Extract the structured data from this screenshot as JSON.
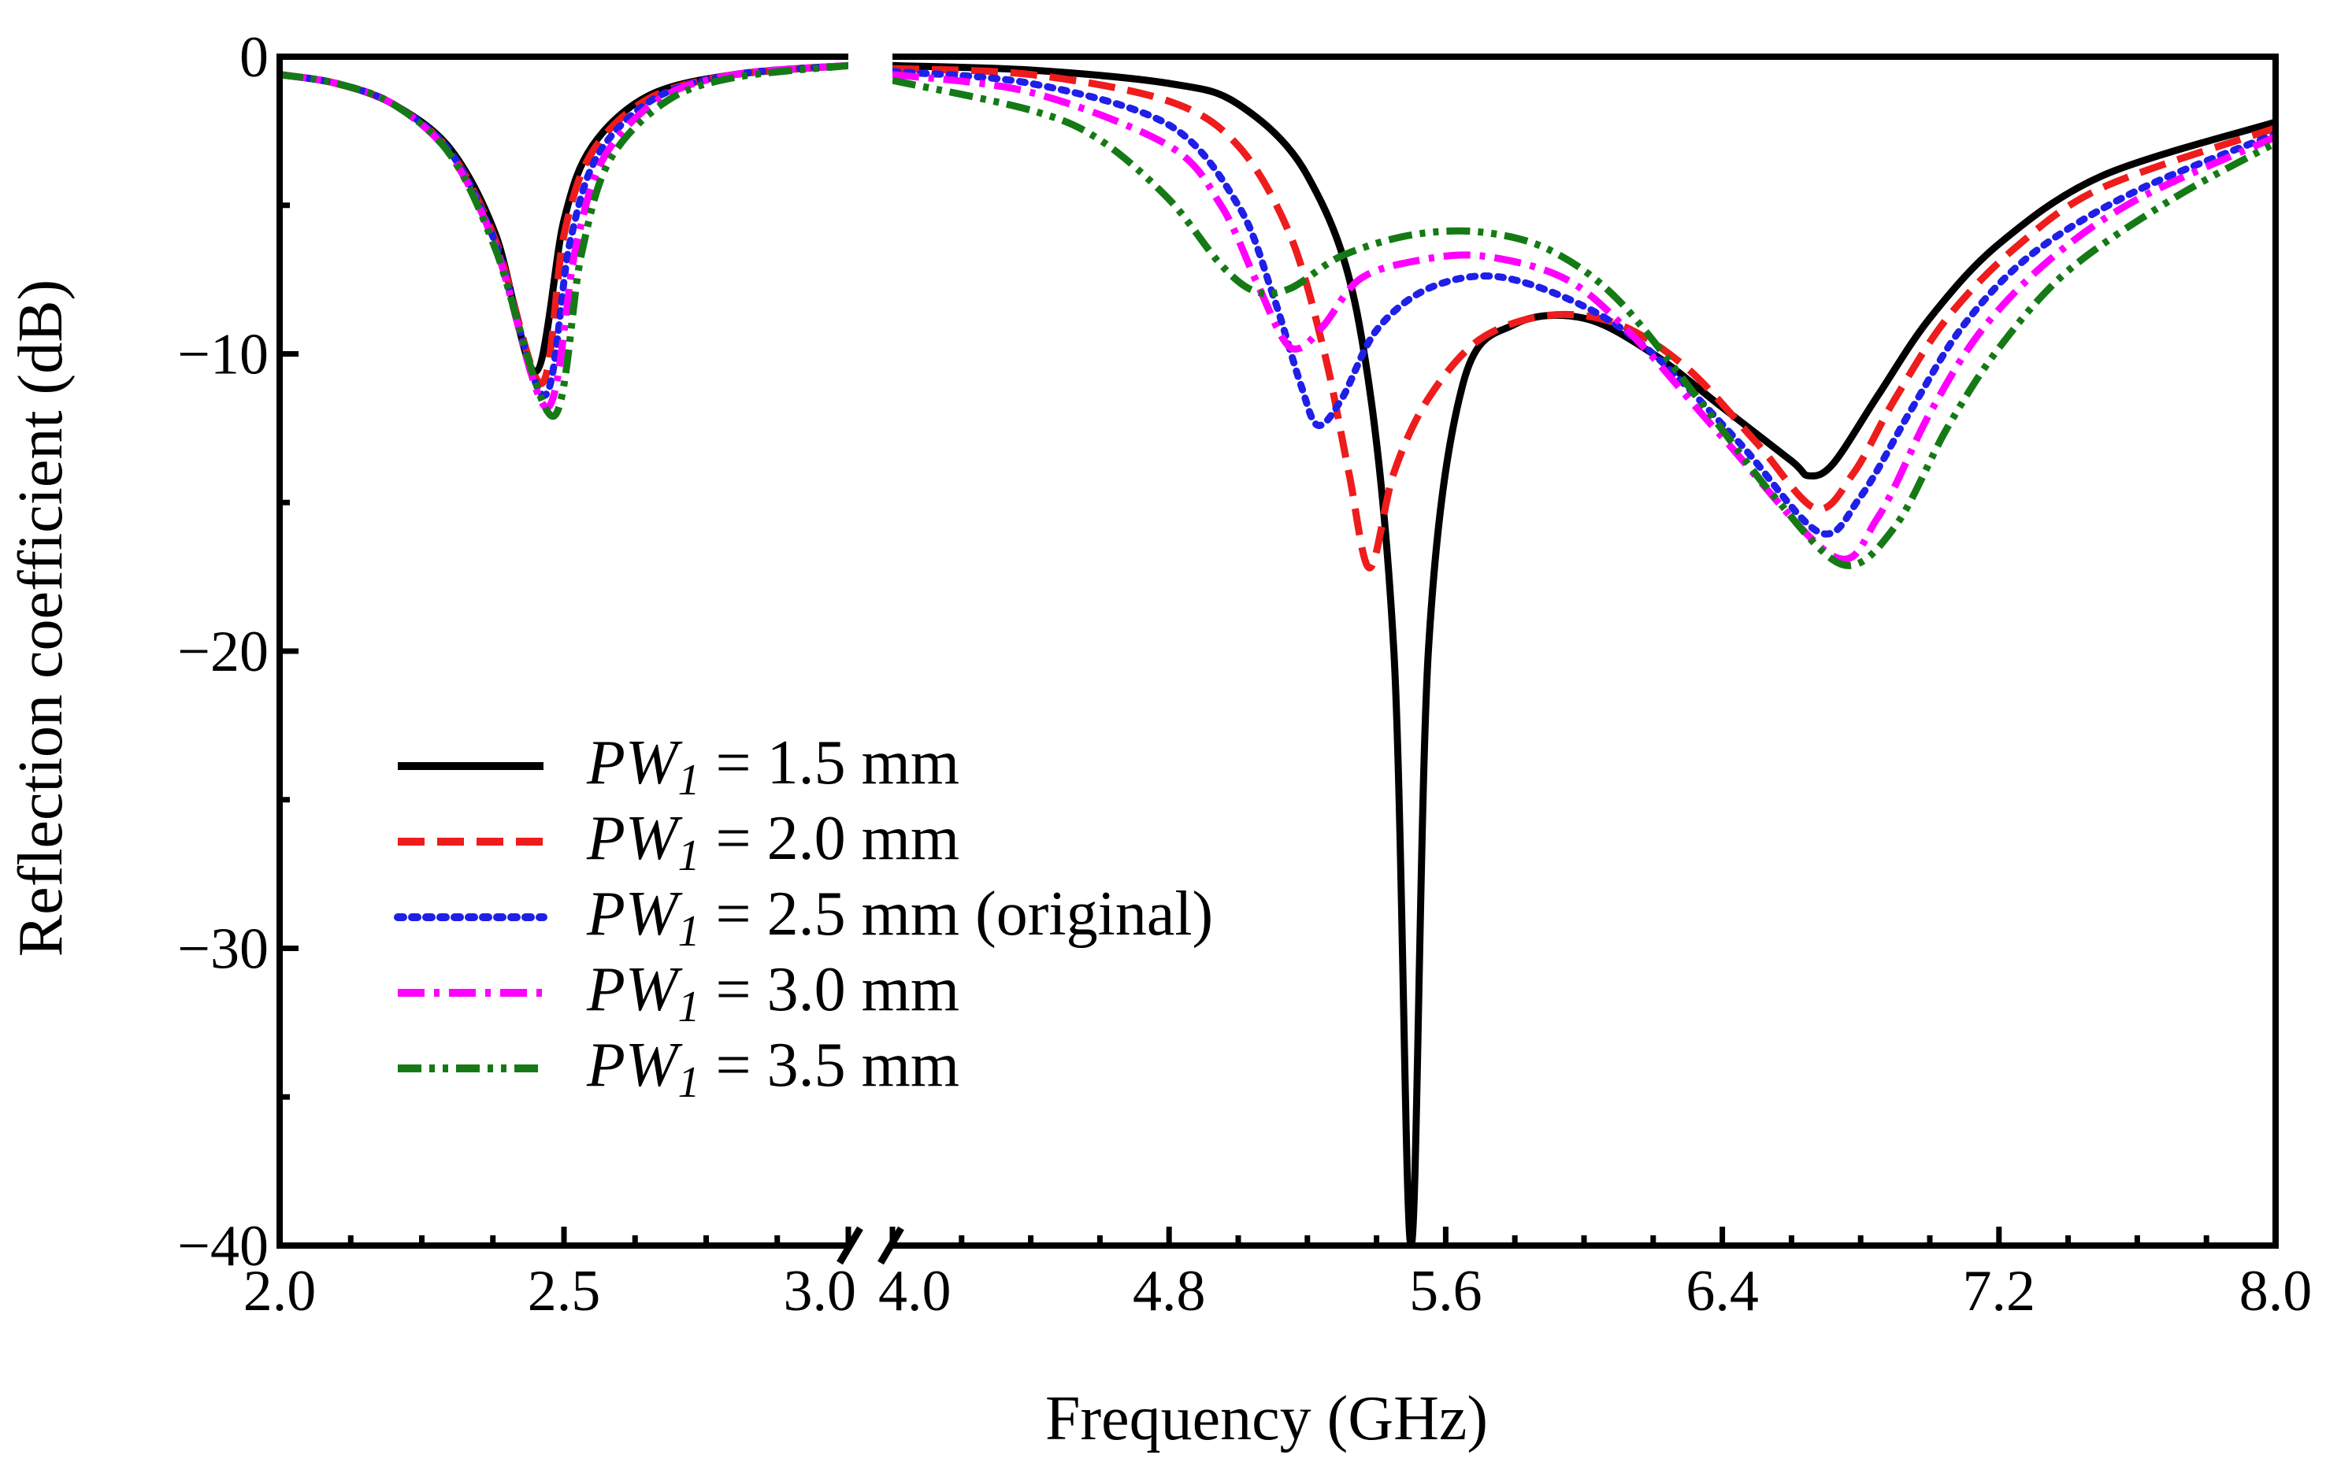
{
  "chart_data": {
    "type": "line",
    "title": "",
    "xlabel": "Frequency (GHz)",
    "ylabel": "Reflection coefficient (dB)",
    "ylim": [
      -40,
      0
    ],
    "y_ticks": [
      0,
      -10,
      -20,
      -30,
      -40
    ],
    "y_tick_labels": [
      "0",
      "−10",
      "−20",
      "−30",
      "−40"
    ],
    "x_axis_break": {
      "from": 3.0,
      "to": 4.0
    },
    "x_segments": [
      {
        "range": [
          2.0,
          3.0
        ],
        "ticks": [
          2.0,
          2.5,
          3.0
        ],
        "tick_labels": [
          "2.0",
          "2.5",
          "3.0"
        ]
      },
      {
        "range": [
          4.0,
          8.0
        ],
        "ticks": [
          4.0,
          4.8,
          5.6,
          6.4,
          7.2,
          8.0
        ],
        "tick_labels": [
          "4.0",
          "4.8",
          "5.6",
          "6.4",
          "7.2",
          "8.0"
        ]
      }
    ],
    "legend_position": "lower-left",
    "legend_var": "PW",
    "legend_sub": "1",
    "series": [
      {
        "name": "PW1 = 1.5 mm",
        "label_rest": " = 1.5 mm",
        "color": "#000000",
        "dash": "solid",
        "low": [
          [
            2.0,
            -0.6
          ],
          [
            2.1,
            -0.9
          ],
          [
            2.2,
            -1.6
          ],
          [
            2.3,
            -3.1
          ],
          [
            2.38,
            -6.0
          ],
          [
            2.45,
            -10.6
          ],
          [
            2.5,
            -5.5
          ],
          [
            2.55,
            -3.0
          ],
          [
            2.65,
            -1.3
          ],
          [
            2.8,
            -0.6
          ],
          [
            3.0,
            -0.3
          ]
        ],
        "high": [
          [
            4.0,
            -0.3
          ],
          [
            4.4,
            -0.45
          ],
          [
            4.8,
            -0.9
          ],
          [
            5.0,
            -1.6
          ],
          [
            5.2,
            -4.0
          ],
          [
            5.35,
            -9.0
          ],
          [
            5.45,
            -20.0
          ],
          [
            5.5,
            -40.0
          ],
          [
            5.55,
            -20.0
          ],
          [
            5.65,
            -11.0
          ],
          [
            5.8,
            -9.0
          ],
          [
            6.0,
            -8.8
          ],
          [
            6.2,
            -10.0
          ],
          [
            6.4,
            -11.8
          ],
          [
            6.6,
            -13.6
          ],
          [
            6.65,
            -14.1
          ],
          [
            6.72,
            -13.7
          ],
          [
            6.85,
            -11.4
          ],
          [
            7.0,
            -8.8
          ],
          [
            7.2,
            -6.3
          ],
          [
            7.5,
            -4.0
          ],
          [
            8.0,
            -2.2
          ]
        ]
      },
      {
        "name": "PW1 = 2.0 mm",
        "label_rest": " = 2.0 mm",
        "color": "#ee1c1c",
        "dash": "dashed",
        "low": [
          [
            2.0,
            -0.6
          ],
          [
            2.1,
            -0.9
          ],
          [
            2.2,
            -1.6
          ],
          [
            2.3,
            -3.2
          ],
          [
            2.38,
            -6.2
          ],
          [
            2.46,
            -11.0
          ],
          [
            2.5,
            -6.0
          ],
          [
            2.55,
            -3.2
          ],
          [
            2.65,
            -1.4
          ],
          [
            2.8,
            -0.6
          ],
          [
            3.0,
            -0.3
          ]
        ],
        "high": [
          [
            4.0,
            -0.4
          ],
          [
            4.4,
            -0.6
          ],
          [
            4.8,
            -1.5
          ],
          [
            5.0,
            -3.0
          ],
          [
            5.15,
            -6.0
          ],
          [
            5.25,
            -10.0
          ],
          [
            5.32,
            -14.0
          ],
          [
            5.38,
            -17.2
          ],
          [
            5.45,
            -14.0
          ],
          [
            5.55,
            -11.5
          ],
          [
            5.7,
            -9.5
          ],
          [
            5.9,
            -8.7
          ],
          [
            6.1,
            -9.0
          ],
          [
            6.3,
            -10.5
          ],
          [
            6.5,
            -13.0
          ],
          [
            6.67,
            -15.2
          ],
          [
            6.78,
            -14.0
          ],
          [
            6.9,
            -11.5
          ],
          [
            7.05,
            -8.8
          ],
          [
            7.25,
            -6.4
          ],
          [
            7.5,
            -4.4
          ],
          [
            8.0,
            -2.4
          ]
        ]
      },
      {
        "name": "PW1 = 2.5 mm (original)",
        "label_rest": " = 2.5 mm (original)",
        "color": "#1f1fe8",
        "dash": "dotted",
        "low": [
          [
            2.0,
            -0.6
          ],
          [
            2.1,
            -0.9
          ],
          [
            2.2,
            -1.6
          ],
          [
            2.3,
            -3.2
          ],
          [
            2.38,
            -6.3
          ],
          [
            2.465,
            -11.4
          ],
          [
            2.51,
            -6.3
          ],
          [
            2.56,
            -3.3
          ],
          [
            2.66,
            -1.4
          ],
          [
            2.8,
            -0.6
          ],
          [
            3.0,
            -0.3
          ]
        ],
        "high": [
          [
            4.0,
            -0.5
          ],
          [
            4.4,
            -0.9
          ],
          [
            4.8,
            -2.3
          ],
          [
            5.0,
            -5.0
          ],
          [
            5.1,
            -8.0
          ],
          [
            5.18,
            -11.0
          ],
          [
            5.23,
            -12.4
          ],
          [
            5.3,
            -11.5
          ],
          [
            5.4,
            -9.2
          ],
          [
            5.55,
            -7.8
          ],
          [
            5.75,
            -7.4
          ],
          [
            6.0,
            -8.4
          ],
          [
            6.2,
            -10.0
          ],
          [
            6.45,
            -13.0
          ],
          [
            6.68,
            -16.0
          ],
          [
            6.8,
            -14.8
          ],
          [
            6.95,
            -11.8
          ],
          [
            7.1,
            -9.0
          ],
          [
            7.3,
            -6.6
          ],
          [
            7.6,
            -4.5
          ],
          [
            8.0,
            -2.6
          ]
        ]
      },
      {
        "name": "PW1 = 3.0 mm",
        "label_rest": " = 3.0 mm",
        "color": "#ff00ff",
        "dash": "dashdot",
        "low": [
          [
            2.0,
            -0.6
          ],
          [
            2.1,
            -0.9
          ],
          [
            2.2,
            -1.6
          ],
          [
            2.3,
            -3.3
          ],
          [
            2.38,
            -6.4
          ],
          [
            2.47,
            -11.8
          ],
          [
            2.52,
            -6.5
          ],
          [
            2.57,
            -3.4
          ],
          [
            2.67,
            -1.4
          ],
          [
            2.8,
            -0.6
          ],
          [
            3.0,
            -0.3
          ]
        ],
        "high": [
          [
            4.0,
            -0.6
          ],
          [
            4.4,
            -1.2
          ],
          [
            4.8,
            -3.0
          ],
          [
            4.95,
            -5.0
          ],
          [
            5.05,
            -7.5
          ],
          [
            5.13,
            -9.5
          ],
          [
            5.18,
            -9.8
          ],
          [
            5.25,
            -9.0
          ],
          [
            5.35,
            -7.5
          ],
          [
            5.5,
            -6.9
          ],
          [
            5.7,
            -6.7
          ],
          [
            5.95,
            -7.5
          ],
          [
            6.15,
            -9.5
          ],
          [
            6.4,
            -12.8
          ],
          [
            6.72,
            -16.8
          ],
          [
            6.85,
            -15.5
          ],
          [
            7.0,
            -12.0
          ],
          [
            7.15,
            -9.2
          ],
          [
            7.35,
            -6.8
          ],
          [
            7.6,
            -4.8
          ],
          [
            8.0,
            -2.7
          ]
        ]
      },
      {
        "name": "PW1 = 3.5 mm",
        "label_rest": " = 3.5 mm",
        "color": "#157a15",
        "dash": "dashdotdot",
        "low": [
          [
            2.0,
            -0.6
          ],
          [
            2.1,
            -0.9
          ],
          [
            2.2,
            -1.6
          ],
          [
            2.3,
            -3.3
          ],
          [
            2.38,
            -6.5
          ],
          [
            2.48,
            -12.1
          ],
          [
            2.53,
            -6.7
          ],
          [
            2.58,
            -3.5
          ],
          [
            2.68,
            -1.5
          ],
          [
            2.8,
            -0.7
          ],
          [
            3.0,
            -0.3
          ]
        ],
        "high": [
          [
            4.0,
            -0.8
          ],
          [
            4.4,
            -1.8
          ],
          [
            4.6,
            -2.8
          ],
          [
            4.8,
            -4.8
          ],
          [
            4.95,
            -7.0
          ],
          [
            5.05,
            -7.9
          ],
          [
            5.15,
            -7.8
          ],
          [
            5.3,
            -6.7
          ],
          [
            5.5,
            -6.0
          ],
          [
            5.7,
            -5.9
          ],
          [
            5.9,
            -6.5
          ],
          [
            6.1,
            -8.2
          ],
          [
            6.35,
            -11.8
          ],
          [
            6.55,
            -14.8
          ],
          [
            6.75,
            -17.1
          ],
          [
            6.9,
            -15.8
          ],
          [
            7.05,
            -12.5
          ],
          [
            7.2,
            -9.8
          ],
          [
            7.4,
            -7.2
          ],
          [
            7.7,
            -4.8
          ],
          [
            8.0,
            -2.9
          ]
        ]
      }
    ]
  }
}
